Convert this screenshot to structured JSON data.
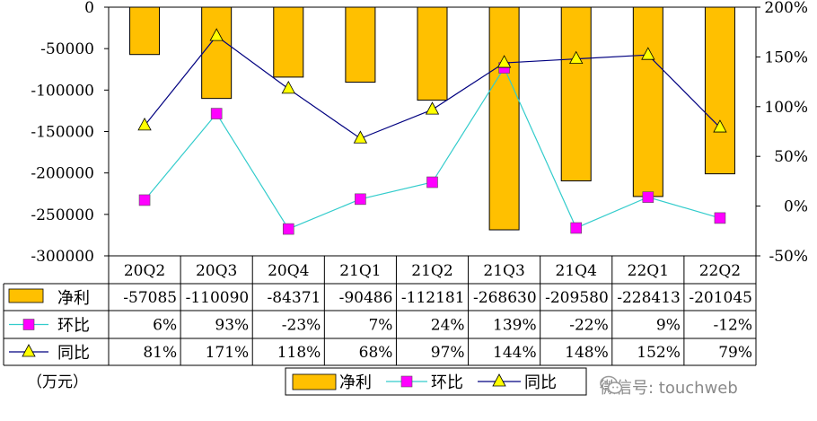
{
  "chart_data": {
    "type": "bar",
    "categories": [
      "20Q2",
      "20Q3",
      "20Q4",
      "21Q1",
      "21Q2",
      "21Q3",
      "21Q4",
      "22Q1",
      "22Q2"
    ],
    "series": [
      {
        "name": "净利",
        "type": "bar",
        "axis": "left",
        "values": [
          -57085,
          -110090,
          -84371,
          -90486,
          -112181,
          -268630,
          -209580,
          -228413,
          -201045
        ],
        "color": "#FFC000"
      },
      {
        "name": "环比",
        "type": "line",
        "axis": "right",
        "values": [
          6,
          93,
          -23,
          7,
          24,
          139,
          -22,
          9,
          -12
        ],
        "color": "#33CCCC",
        "marker": "square",
        "marker_color": "#FF00FF"
      },
      {
        "name": "同比",
        "type": "line",
        "axis": "right",
        "values": [
          81,
          171,
          118,
          68,
          97,
          144,
          148,
          152,
          79
        ],
        "color": "#000080",
        "marker": "triangle",
        "marker_color": "#FFFF00"
      }
    ],
    "table_rows": [
      [
        "-57085",
        "-110090",
        "-84371",
        "-90486",
        "-112181",
        "-268630",
        "-209580",
        "-228413",
        "-201045"
      ],
      [
        "6%",
        "93%",
        "-23%",
        "7%",
        "24%",
        "139%",
        "-22%",
        "9%",
        "-12%"
      ],
      [
        "81%",
        "171%",
        "118%",
        "68%",
        "97%",
        "144%",
        "148%",
        "152%",
        "79%"
      ]
    ],
    "left_axis": {
      "ylim": [
        -300000,
        0
      ],
      "ticks": [
        "0",
        "-50000",
        "-100000",
        "-150000",
        "-200000",
        "-250000",
        "-300000"
      ]
    },
    "right_axis": {
      "ylim": [
        -50,
        200
      ],
      "ticks": [
        "200%",
        "150%",
        "100%",
        "50%",
        "0%",
        "-50%"
      ]
    },
    "unit": "（万元）",
    "legend_position": "bottom",
    "grid": true
  },
  "watermark": "微信号: touchweb"
}
